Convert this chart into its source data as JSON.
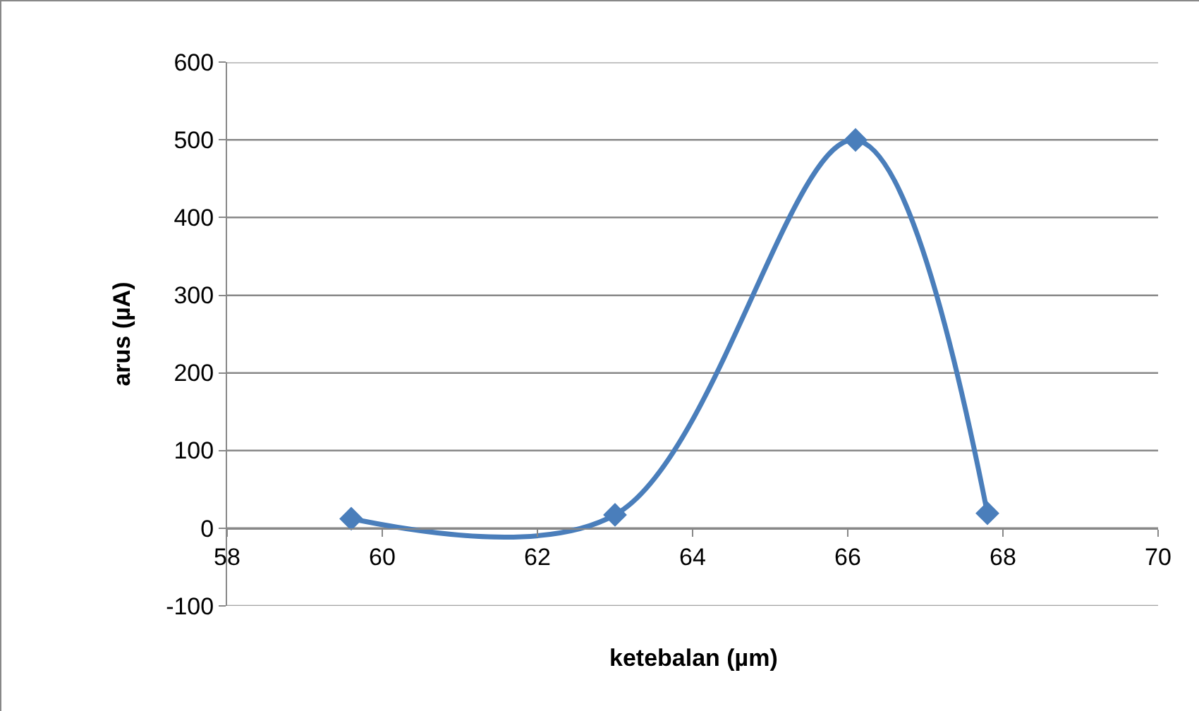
{
  "chart_data": {
    "type": "line",
    "xlabel": "ketebalan (µm)",
    "ylabel": "arus (µA)",
    "x": [
      59.6,
      63.0,
      66.1,
      67.8
    ],
    "series": [
      {
        "color": "#4a7ebb",
        "values": [
          12,
          17,
          500,
          19
        ]
      }
    ],
    "xlim": [
      58,
      70
    ],
    "xticks": [
      58,
      60,
      62,
      64,
      66,
      68,
      70
    ],
    "ylim": [
      -100,
      600
    ],
    "yticks": [
      -100,
      0,
      100,
      200,
      300,
      400,
      500,
      600
    ],
    "grid": "y",
    "marker": "diamond",
    "line_style": "solid"
  }
}
